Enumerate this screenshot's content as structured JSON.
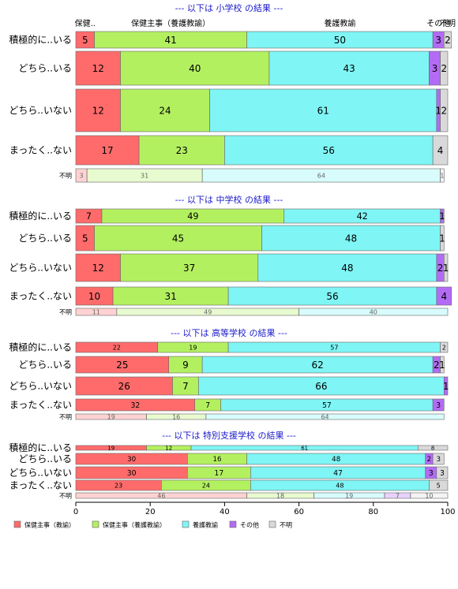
{
  "chart_data": {
    "type": "bar",
    "orientation": "horizontal-stacked",
    "xlim": [
      0,
      100
    ],
    "x_ticks": [
      0,
      20,
      40,
      60,
      80,
      100
    ],
    "grid": false,
    "legend_position": "bottom",
    "series": [
      {
        "name": "保健主事（教諭）",
        "color": "#ff6b6b"
      },
      {
        "name": "保健主事（養護教諭）",
        "color": "#b3f060"
      },
      {
        "name": "養護教諭",
        "color": "#7ff5f5"
      },
      {
        "name": "その他",
        "color": "#b36bf5"
      },
      {
        "name": "不明",
        "color": "#d9d9d9"
      }
    ],
    "panels": [
      {
        "title": "--- 以下は 小学校 の結果 ---",
        "top_labels": [
          "保健..",
          "保健主事（養護教諭）",
          "養護教諭",
          "その他",
          "不明"
        ],
        "categories": [
          "積極的に..いる",
          "どちら..いる",
          "どちら..いない",
          "まったく..ない",
          "不明"
        ],
        "values": [
          [
            5,
            41,
            50,
            3,
            2
          ],
          [
            12,
            40,
            43,
            3,
            2
          ],
          [
            12,
            24,
            61,
            1,
            2
          ],
          [
            17,
            23,
            56,
            0,
            4
          ],
          [
            3,
            31,
            64,
            0,
            1
          ]
        ]
      },
      {
        "title": "--- 以下は 中学校 の結果 ---",
        "categories": [
          "積極的に..いる",
          "どちら..いる",
          "どちら..いない",
          "まったく..ない",
          "不明"
        ],
        "values": [
          [
            7,
            49,
            42,
            1,
            0
          ],
          [
            5,
            45,
            48,
            0,
            1
          ],
          [
            12,
            37,
            48,
            2,
            1
          ],
          [
            10,
            31,
            56,
            4,
            0
          ],
          [
            11,
            49,
            40,
            0,
            0
          ]
        ]
      },
      {
        "title": "--- 以下は 高等学校 の結果 ---",
        "categories": [
          "積極的に..いる",
          "どちら..いる",
          "どちら..いない",
          "まったく..ない",
          "不明"
        ],
        "values": [
          [
            22,
            19,
            57,
            0,
            2
          ],
          [
            25,
            9,
            62,
            2,
            1
          ],
          [
            26,
            7,
            66,
            1,
            0
          ],
          [
            32,
            7,
            57,
            3,
            0
          ],
          [
            19,
            16,
            64,
            0,
            0
          ]
        ]
      },
      {
        "title": "--- 以下は 特別支援学校 の結果 ---",
        "categories": [
          "積極的に..いる",
          "どちら..いる",
          "どちら..いない",
          "まったく..ない",
          "不明"
        ],
        "values": [
          [
            19,
            12,
            61,
            0,
            8
          ],
          [
            30,
            16,
            48,
            2,
            3
          ],
          [
            30,
            17,
            47,
            3,
            3
          ],
          [
            23,
            24,
            48,
            0,
            5
          ],
          [
            46,
            18,
            19,
            7,
            10
          ]
        ]
      }
    ]
  }
}
